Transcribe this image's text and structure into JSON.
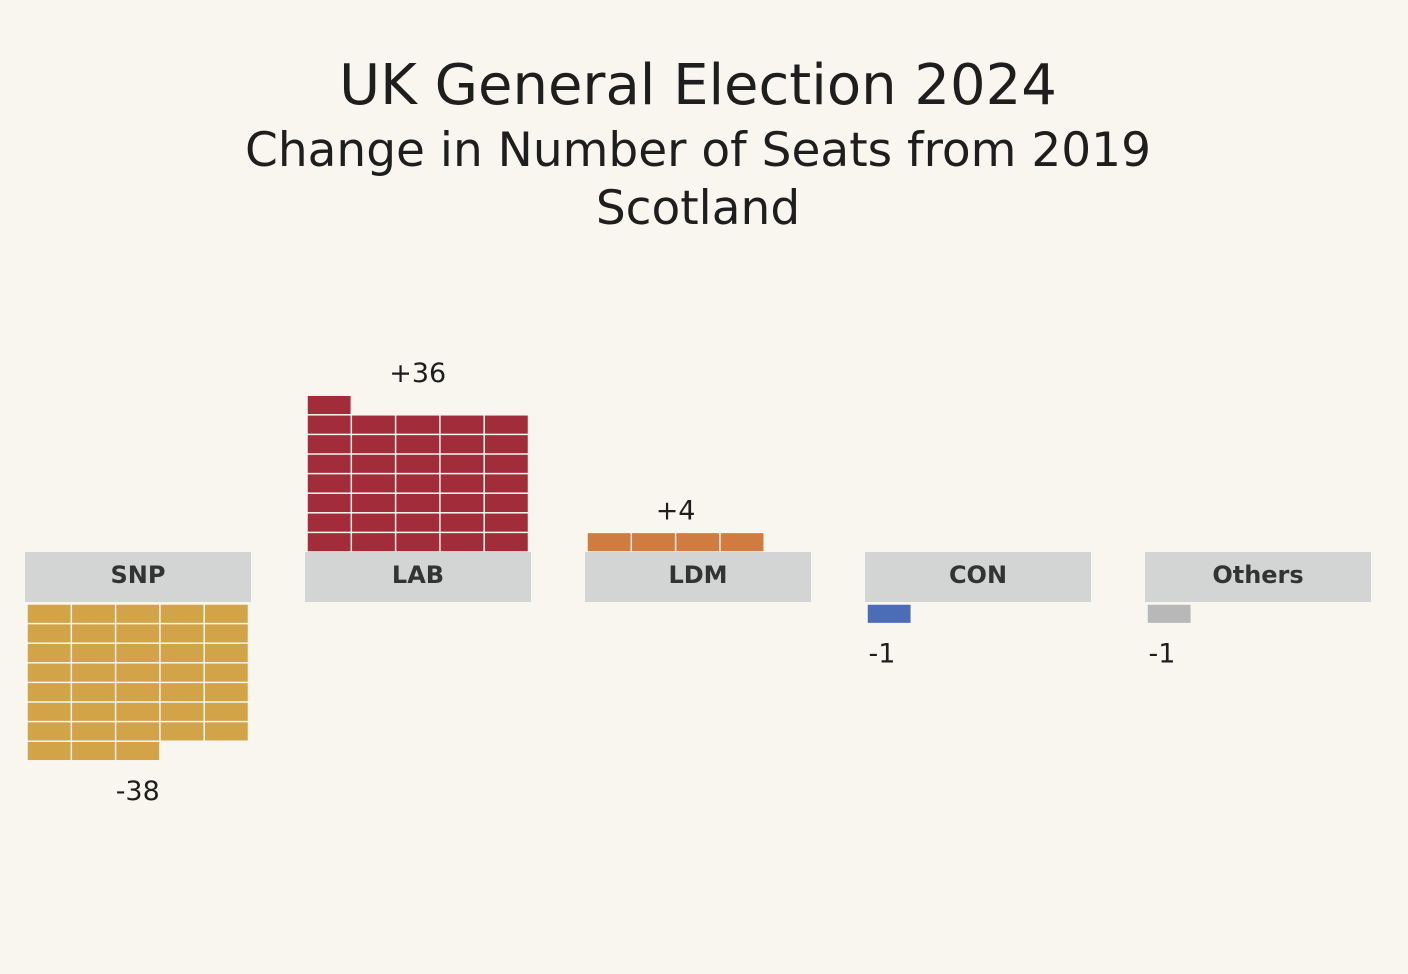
{
  "chart_data": {
    "type": "waffle",
    "title": "UK General Election 2024",
    "subtitle": "Change in Number of Seats from 2019",
    "region": "Scotland",
    "units_per_row": 5,
    "categories": [
      "SNP",
      "LAB",
      "LDM",
      "CON",
      "Others"
    ],
    "values": [
      -38,
      36,
      4,
      -1,
      -1
    ],
    "value_labels": [
      "-38",
      "+36",
      "+4",
      "-1",
      "-1"
    ],
    "colors": [
      "#d2a447",
      "#a32c3a",
      "#d07b40",
      "#4a6db5",
      "#b8b8b8"
    ],
    "label_bg": "#d3d4d4",
    "background": "#f8f6ef"
  }
}
